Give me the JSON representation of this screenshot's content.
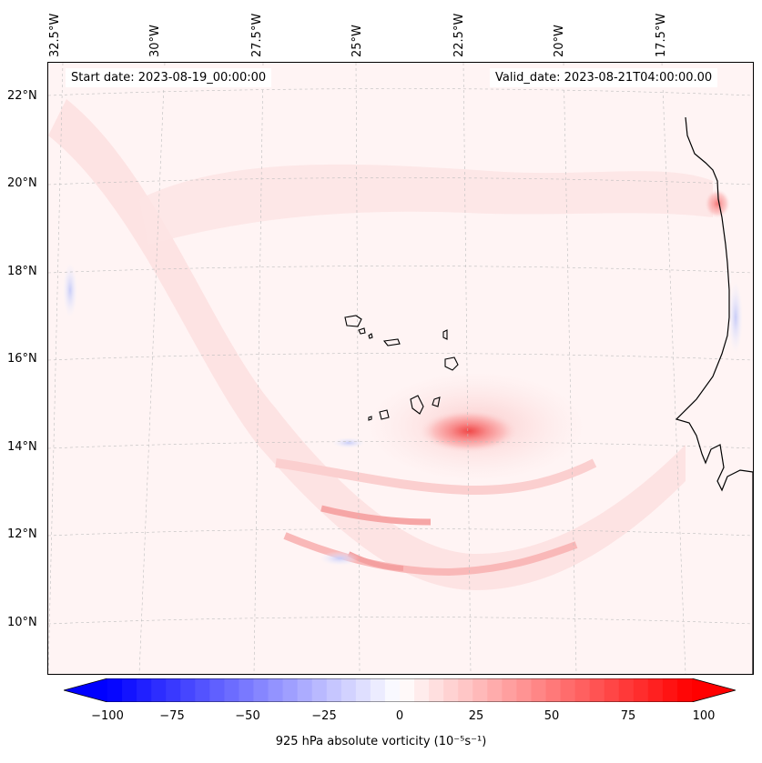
{
  "map": {
    "start_date": "Start date: 2023-08-19_00:00:00",
    "valid_date": "Valid_date: 2023-08-21T04:00:00.00",
    "lon_labels": [
      "32.5°W",
      "30°W",
      "27.5°W",
      "25°W",
      "22.5°W",
      "20°W",
      "17.5°W"
    ],
    "lat_labels": [
      "22°N",
      "20°N",
      "18°N",
      "16°N",
      "14°N",
      "12°N",
      "10°N"
    ],
    "colors": {
      "negative": "#0000ff",
      "neutral": "#ffffff",
      "positive": "#ff0000",
      "coastline": "#000000"
    }
  },
  "colorbar": {
    "label": "925 hPa absolute vorticity (10⁻⁵s⁻¹)",
    "range": [
      -100,
      100
    ],
    "ticks": [
      "−100",
      "−75",
      "−50",
      "−25",
      "0",
      "25",
      "50",
      "75",
      "100"
    ]
  }
}
